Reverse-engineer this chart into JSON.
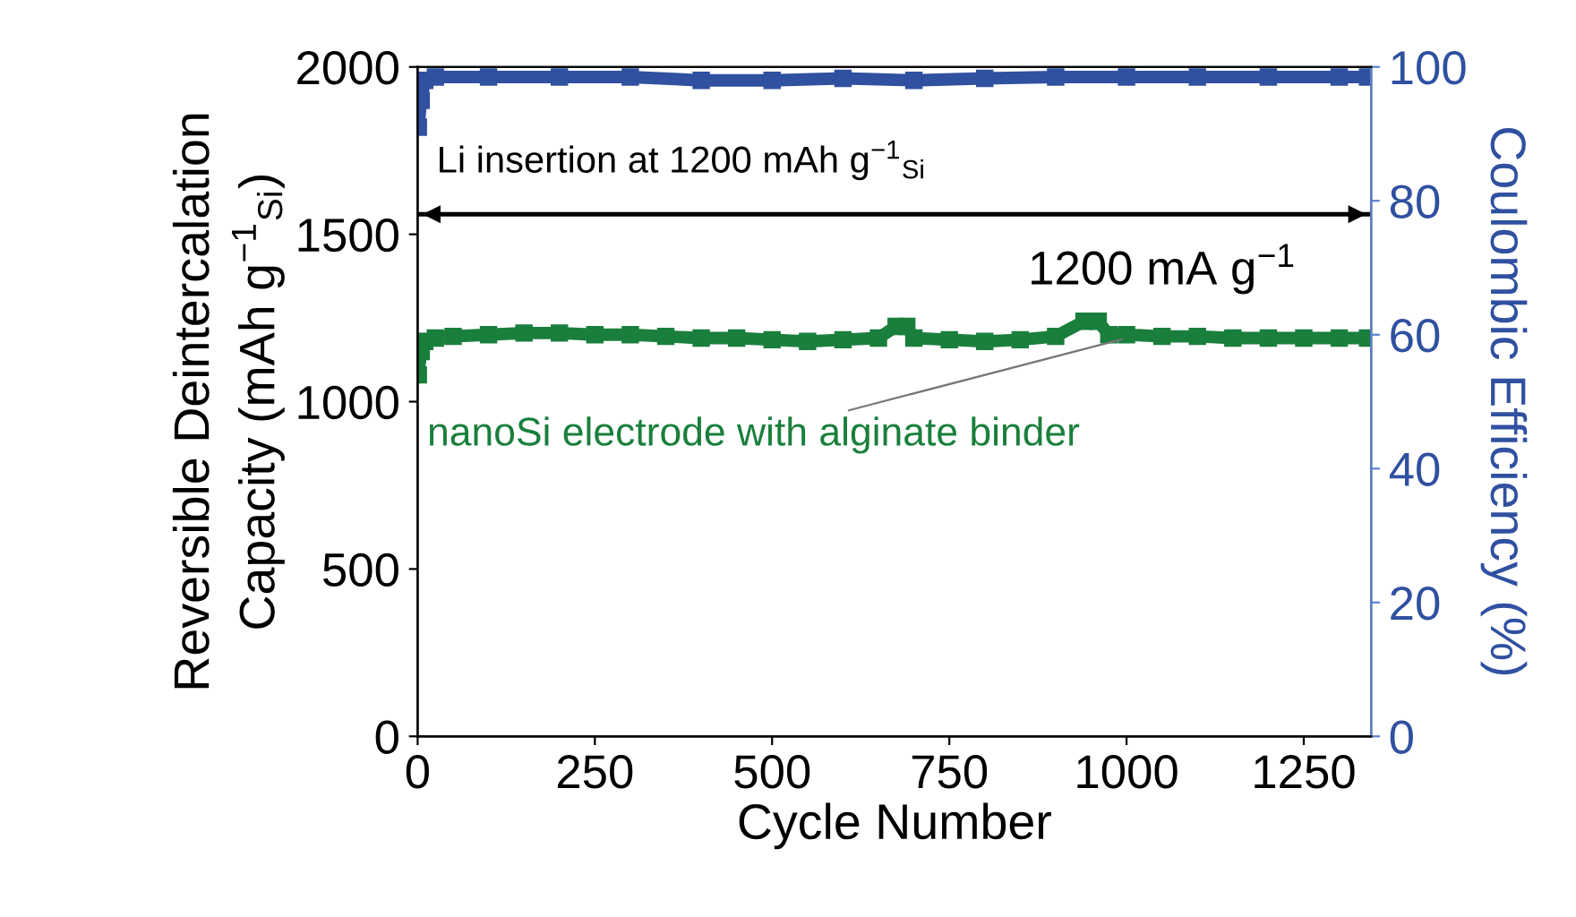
{
  "chart_data": {
    "type": "line",
    "xlabel": "Cycle Number",
    "ylabel": "Reversible Deintercalation\nCapacity (mAh g$^{−1}$$_{Si}$)",
    "y2label": "Coulombic Efficiency (%)",
    "xlim": [
      0,
      1345
    ],
    "xticks": [
      0,
      250,
      500,
      750,
      1000,
      1250
    ],
    "ylim": [
      0,
      2000
    ],
    "yticks": [
      0,
      500,
      1000,
      1500,
      2000
    ],
    "y2lim": [
      0,
      100
    ],
    "y2ticks": [
      0,
      20,
      40,
      60,
      80,
      100
    ],
    "marker": "square",
    "line_style": "solid",
    "grid": false,
    "legend": false,
    "series": [
      {
        "color": "#1a7f3c",
        "x": [
          1,
          5,
          10,
          25,
          50,
          100,
          150,
          200,
          250,
          300,
          350,
          400,
          450,
          500,
          550,
          600,
          650,
          675,
          690,
          700,
          750,
          800,
          850,
          900,
          940,
          960,
          975,
          1000,
          1050,
          1100,
          1150,
          1200,
          1250,
          1300,
          1340
        ],
        "values": [
          1080,
          1150,
          1180,
          1190,
          1195,
          1200,
          1205,
          1205,
          1200,
          1200,
          1195,
          1190,
          1190,
          1185,
          1180,
          1185,
          1190,
          1225,
          1225,
          1190,
          1185,
          1180,
          1185,
          1195,
          1240,
          1240,
          1200,
          1200,
          1195,
          1195,
          1190,
          1190,
          1190,
          1190,
          1190
        ]
      },
      {
        "color": "#3050a0",
        "axis": "y2",
        "x": [
          1,
          5,
          10,
          25,
          100,
          200,
          300,
          400,
          500,
          600,
          700,
          800,
          900,
          1000,
          1100,
          1200,
          1300,
          1340
        ],
        "values": [
          91,
          95,
          98,
          98.5,
          98.5,
          98.5,
          98.5,
          98,
          98,
          98.3,
          98,
          98.3,
          98.5,
          98.5,
          98.5,
          98.5,
          98.5,
          98.5
        ]
      }
    ],
    "ref_lines": [
      {
        "axis": "y",
        "value": 1560,
        "label": "1200 mA g$^{−1}$",
        "color": "#000000",
        "line_style": "solid"
      }
    ],
    "annotations": [
      "Li insertion at 1200 mAh g$^{−1}$$_{Si}$",
      {
        "text": "nanoSi electrode with alginate binder",
        "x": 1000,
        "y": 1190
      }
    ]
  }
}
